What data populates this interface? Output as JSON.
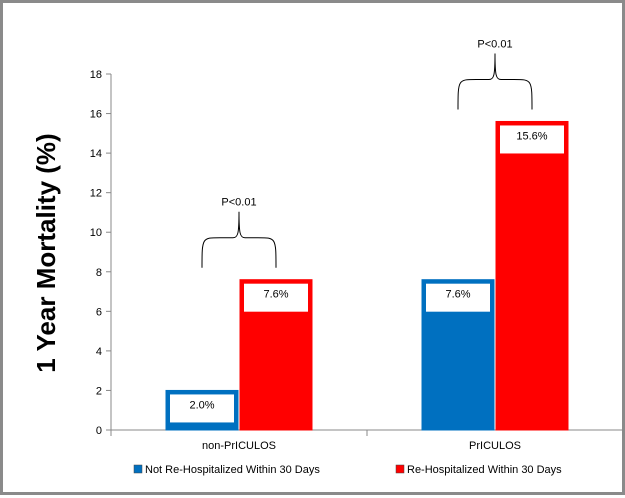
{
  "chart_data": {
    "type": "bar",
    "title": "",
    "xlabel": "",
    "ylabel": "1 Year Mortality (%)",
    "ylim": [
      0,
      18
    ],
    "yticks": [
      0,
      2,
      4,
      6,
      8,
      10,
      12,
      14,
      16,
      18
    ],
    "categories": [
      "non-PrICULOS",
      "PrICULOS"
    ],
    "series": [
      {
        "name": "Not Re-Hospitalized Within 30 Days",
        "color": "#0070c0",
        "values": [
          2.0,
          7.6
        ],
        "labels": [
          "2.0%",
          "7.6%"
        ]
      },
      {
        "name": "Re-Hospitalized Within 30 Days",
        "color": "#ff0000",
        "values": [
          7.6,
          15.6
        ],
        "labels": [
          "7.6%",
          "15.6%"
        ]
      }
    ],
    "annotations": [
      {
        "category": "non-PrICULOS",
        "text": "P<0.01"
      },
      {
        "category": "PrICULOS",
        "text": "P<0.01"
      }
    ],
    "legend": "bottom",
    "grid": false
  }
}
